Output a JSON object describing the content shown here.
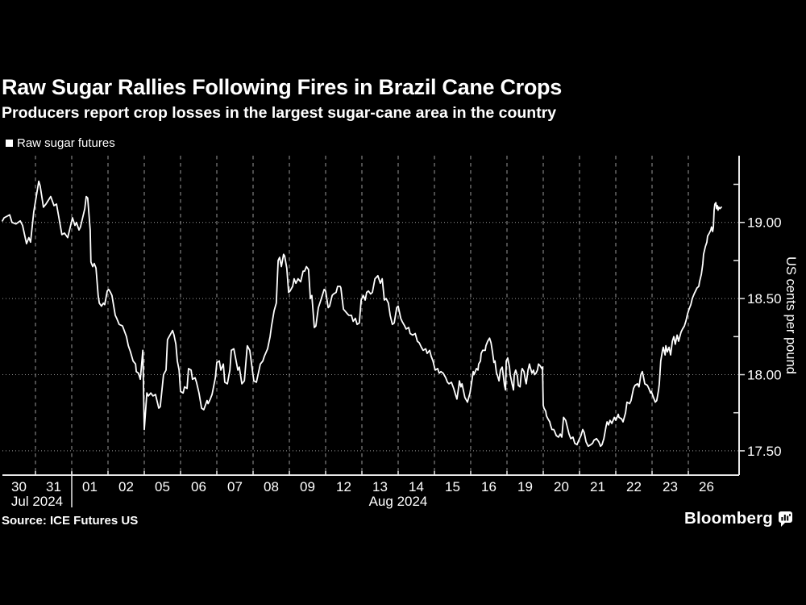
{
  "header": {
    "title": "Raw Sugar Rallies Following Fires in Brazil Cane Crops",
    "subtitle": "Producers report crop losses in the largest sugar-cane area in the country"
  },
  "legend": {
    "label": "Raw sugar futures",
    "marker_color": "#ffffff"
  },
  "footer": {
    "source": "Source: ICE Futures US",
    "brand": "Bloomberg",
    "brand_icon": "bar-chart-bubble-icon"
  },
  "colors": {
    "background": "#000000",
    "text": "#ffffff",
    "line": "#ffffff",
    "grid": "#9a9a9a",
    "axis": "#e8e8e8"
  },
  "chart_data": {
    "type": "line",
    "series_name": "Raw sugar futures",
    "ylabel": "US cents per pound",
    "xlabel": "",
    "ylim": [
      17.34,
      19.44
    ],
    "grid": "dashed vertical day boundaries, dotted horizontal value lines",
    "legend_position": "top-left",
    "y_ticks": [
      {
        "value": 19.0,
        "label": "19.00"
      },
      {
        "value": 18.5,
        "label": "18.50"
      },
      {
        "value": 18.0,
        "label": "18.00"
      },
      {
        "value": 17.5,
        "label": "17.50"
      }
    ],
    "y_minor_ticks": [
      19.25,
      18.75,
      18.25,
      17.75
    ],
    "x_categories": [
      "30",
      "31",
      "01",
      "02",
      "05",
      "06",
      "07",
      "08",
      "09",
      "12",
      "13",
      "14",
      "15",
      "16",
      "19",
      "20",
      "21",
      "22",
      "23",
      "26"
    ],
    "x_months": [
      {
        "label": "Jul 2024",
        "from_day": 0,
        "to_day": 2
      },
      {
        "label": "Aug 2024",
        "from_day": 2,
        "to_day": 20
      }
    ],
    "points_units": "[trading_day_index 0-20 across x_categories, price in US cents per pound]",
    "points": [
      [
        0.0,
        19.01
      ],
      [
        0.05,
        19.03
      ],
      [
        0.22,
        19.05
      ],
      [
        0.29,
        19.0
      ],
      [
        0.41,
        18.99
      ],
      [
        0.54,
        19.01
      ],
      [
        0.61,
        18.98
      ],
      [
        0.73,
        18.86
      ],
      [
        0.8,
        18.9
      ],
      [
        0.85,
        18.87
      ],
      [
        0.95,
        19.07
      ],
      [
        1.09,
        19.27
      ],
      [
        1.13,
        19.24
      ],
      [
        1.22,
        19.1
      ],
      [
        1.29,
        19.12
      ],
      [
        1.42,
        19.17
      ],
      [
        1.51,
        19.11
      ],
      [
        1.58,
        19.12
      ],
      [
        1.73,
        18.92
      ],
      [
        1.8,
        18.93
      ],
      [
        1.89,
        18.9
      ],
      [
        1.96,
        18.97
      ],
      [
        2.02,
        19.03
      ],
      [
        2.09,
        18.98
      ],
      [
        2.13,
        19.0
      ],
      [
        2.2,
        18.95
      ],
      [
        2.24,
        18.97
      ],
      [
        2.36,
        19.09
      ],
      [
        2.4,
        19.17
      ],
      [
        2.44,
        19.16
      ],
      [
        2.51,
        18.95
      ],
      [
        2.53,
        18.74
      ],
      [
        2.58,
        18.71
      ],
      [
        2.62,
        18.73
      ],
      [
        2.67,
        18.7
      ],
      [
        2.73,
        18.52
      ],
      [
        2.76,
        18.47
      ],
      [
        2.82,
        18.45
      ],
      [
        2.87,
        18.47
      ],
      [
        2.91,
        18.46
      ],
      [
        2.98,
        18.55
      ],
      [
        3.02,
        18.56
      ],
      [
        3.07,
        18.54
      ],
      [
        3.11,
        18.52
      ],
      [
        3.2,
        18.39
      ],
      [
        3.24,
        18.37
      ],
      [
        3.31,
        18.33
      ],
      [
        3.4,
        18.32
      ],
      [
        3.51,
        18.25
      ],
      [
        3.56,
        18.19
      ],
      [
        3.62,
        18.15
      ],
      [
        3.69,
        18.09
      ],
      [
        3.76,
        18.07
      ],
      [
        3.78,
        18.02
      ],
      [
        3.84,
        18.01
      ],
      [
        3.89,
        17.97
      ],
      [
        3.96,
        18.16
      ],
      [
        4.0,
        17.64
      ],
      [
        4.07,
        17.88
      ],
      [
        4.11,
        17.86
      ],
      [
        4.18,
        17.88
      ],
      [
        4.24,
        17.86
      ],
      [
        4.31,
        17.87
      ],
      [
        4.4,
        17.78
      ],
      [
        4.44,
        17.79
      ],
      [
        4.53,
        18.0
      ],
      [
        4.6,
        18.03
      ],
      [
        4.64,
        18.23
      ],
      [
        4.78,
        18.29
      ],
      [
        4.82,
        18.26
      ],
      [
        4.87,
        18.2
      ],
      [
        4.91,
        18.09
      ],
      [
        4.96,
        18.03
      ],
      [
        5.0,
        17.89
      ],
      [
        5.07,
        17.88
      ],
      [
        5.11,
        17.92
      ],
      [
        5.18,
        17.91
      ],
      [
        5.22,
        18.04
      ],
      [
        5.29,
        18.03
      ],
      [
        5.33,
        17.97
      ],
      [
        5.4,
        17.98
      ],
      [
        5.44,
        17.95
      ],
      [
        5.51,
        17.88
      ],
      [
        5.58,
        17.78
      ],
      [
        5.64,
        17.77
      ],
      [
        5.73,
        17.83
      ],
      [
        5.76,
        17.81
      ],
      [
        5.82,
        17.84
      ],
      [
        5.87,
        17.87
      ],
      [
        5.96,
        17.98
      ],
      [
        6.0,
        18.08
      ],
      [
        6.07,
        18.09
      ],
      [
        6.11,
        18.03
      ],
      [
        6.18,
        18.07
      ],
      [
        6.22,
        17.95
      ],
      [
        6.29,
        17.94
      ],
      [
        6.36,
        18.03
      ],
      [
        6.4,
        18.16
      ],
      [
        6.47,
        18.17
      ],
      [
        6.51,
        18.12
      ],
      [
        6.58,
        18.03
      ],
      [
        6.62,
        18.05
      ],
      [
        6.69,
        17.94
      ],
      [
        6.76,
        17.96
      ],
      [
        6.84,
        18.19
      ],
      [
        6.91,
        18.16
      ],
      [
        7.02,
        17.96
      ],
      [
        7.09,
        17.95
      ],
      [
        7.2,
        18.07
      ],
      [
        7.27,
        18.09
      ],
      [
        7.31,
        18.12
      ],
      [
        7.4,
        18.17
      ],
      [
        7.47,
        18.25
      ],
      [
        7.51,
        18.32
      ],
      [
        7.58,
        18.42
      ],
      [
        7.64,
        18.47
      ],
      [
        7.69,
        18.75
      ],
      [
        7.73,
        18.77
      ],
      [
        7.78,
        18.71
      ],
      [
        7.84,
        18.79
      ],
      [
        7.87,
        18.78
      ],
      [
        7.93,
        18.7
      ],
      [
        7.98,
        18.54
      ],
      [
        8.02,
        18.55
      ],
      [
        8.09,
        18.58
      ],
      [
        8.13,
        18.63
      ],
      [
        8.18,
        18.6
      ],
      [
        8.24,
        18.63
      ],
      [
        8.31,
        18.61
      ],
      [
        8.38,
        18.68
      ],
      [
        8.42,
        18.68
      ],
      [
        8.47,
        18.71
      ],
      [
        8.53,
        18.69
      ],
      [
        8.58,
        18.5
      ],
      [
        8.62,
        18.52
      ],
      [
        8.69,
        18.31
      ],
      [
        8.73,
        18.32
      ],
      [
        8.8,
        18.44
      ],
      [
        8.87,
        18.49
      ],
      [
        8.96,
        18.56
      ],
      [
        9.0,
        18.55
      ],
      [
        9.07,
        18.44
      ],
      [
        9.11,
        18.45
      ],
      [
        9.18,
        18.52
      ],
      [
        9.22,
        18.53
      ],
      [
        9.29,
        18.54
      ],
      [
        9.33,
        18.58
      ],
      [
        9.4,
        18.58
      ],
      [
        9.42,
        18.57
      ],
      [
        9.49,
        18.43
      ],
      [
        9.53,
        18.42
      ],
      [
        9.6,
        18.4
      ],
      [
        9.64,
        18.39
      ],
      [
        9.71,
        18.39
      ],
      [
        9.76,
        18.35
      ],
      [
        9.82,
        18.37
      ],
      [
        9.87,
        18.33
      ],
      [
        9.93,
        18.34
      ],
      [
        9.98,
        18.49
      ],
      [
        10.04,
        18.52
      ],
      [
        10.09,
        18.49
      ],
      [
        10.13,
        18.54
      ],
      [
        10.18,
        18.55
      ],
      [
        10.24,
        18.53
      ],
      [
        10.29,
        18.54
      ],
      [
        10.36,
        18.63
      ],
      [
        10.4,
        18.64
      ],
      [
        10.44,
        18.65
      ],
      [
        10.51,
        18.6
      ],
      [
        10.56,
        18.63
      ],
      [
        10.62,
        18.49
      ],
      [
        10.67,
        18.5
      ],
      [
        10.73,
        18.47
      ],
      [
        10.78,
        18.39
      ],
      [
        10.84,
        18.33
      ],
      [
        10.89,
        18.34
      ],
      [
        10.96,
        18.44
      ],
      [
        11.0,
        18.45
      ],
      [
        11.07,
        18.37
      ],
      [
        11.11,
        18.35
      ],
      [
        11.18,
        18.32
      ],
      [
        11.22,
        18.3
      ],
      [
        11.29,
        18.31
      ],
      [
        11.33,
        18.27
      ],
      [
        11.4,
        18.26
      ],
      [
        11.47,
        18.27
      ],
      [
        11.53,
        18.22
      ],
      [
        11.58,
        18.21
      ],
      [
        11.64,
        18.18
      ],
      [
        11.69,
        18.16
      ],
      [
        11.76,
        18.17
      ],
      [
        11.8,
        18.14
      ],
      [
        11.87,
        18.16
      ],
      [
        11.91,
        18.12
      ],
      [
        11.96,
        18.09
      ],
      [
        12.02,
        18.03
      ],
      [
        12.09,
        18.04
      ],
      [
        12.13,
        18.01
      ],
      [
        12.18,
        18.02
      ],
      [
        12.24,
        18.01
      ],
      [
        12.31,
        17.98
      ],
      [
        12.36,
        17.95
      ],
      [
        12.4,
        17.94
      ],
      [
        12.47,
        17.95
      ],
      [
        12.53,
        17.91
      ],
      [
        12.58,
        17.87
      ],
      [
        12.62,
        17.84
      ],
      [
        12.67,
        17.92
      ],
      [
        12.69,
        17.96
      ],
      [
        12.73,
        17.92
      ],
      [
        12.76,
        17.94
      ],
      [
        12.84,
        17.85
      ],
      [
        12.91,
        17.82
      ],
      [
        12.98,
        17.88
      ],
      [
        13.02,
        17.94
      ],
      [
        13.07,
        18.02
      ],
      [
        13.09,
        18.0
      ],
      [
        13.16,
        18.04
      ],
      [
        13.2,
        18.03
      ],
      [
        13.22,
        18.07
      ],
      [
        13.27,
        18.09
      ],
      [
        13.29,
        18.14
      ],
      [
        13.33,
        18.16
      ],
      [
        13.4,
        18.16
      ],
      [
        13.42,
        18.19
      ],
      [
        13.47,
        18.22
      ],
      [
        13.52,
        18.24
      ],
      [
        13.56,
        18.21
      ],
      [
        13.6,
        18.15
      ],
      [
        13.64,
        18.08
      ],
      [
        13.67,
        18.09
      ],
      [
        13.71,
        18.01
      ],
      [
        13.73,
        18.0
      ],
      [
        13.78,
        17.96
      ],
      [
        13.82,
        18.03
      ],
      [
        13.87,
        18.05
      ],
      [
        13.89,
        18.01
      ],
      [
        13.93,
        17.93
      ],
      [
        13.96,
        17.9
      ],
      [
        13.98,
        18.09
      ],
      [
        14.02,
        18.11
      ],
      [
        14.07,
        18.05
      ],
      [
        14.09,
        18.0
      ],
      [
        14.14,
        17.94
      ],
      [
        14.18,
        17.9
      ],
      [
        14.2,
        18.0
      ],
      [
        14.24,
        18.03
      ],
      [
        14.29,
        17.99
      ],
      [
        14.31,
        17.93
      ],
      [
        14.36,
        17.92
      ],
      [
        14.4,
        18.02
      ],
      [
        14.42,
        18.04
      ],
      [
        14.47,
        18.02
      ],
      [
        14.51,
        17.96
      ],
      [
        14.53,
        17.94
      ],
      [
        14.58,
        18.03
      ],
      [
        14.62,
        18.07
      ],
      [
        14.64,
        18.05
      ],
      [
        14.69,
        18.01
      ],
      [
        14.73,
        18.03
      ],
      [
        14.76,
        18.0
      ],
      [
        14.8,
        18.01
      ],
      [
        14.84,
        18.03
      ],
      [
        14.87,
        18.07
      ],
      [
        14.91,
        18.06
      ],
      [
        14.96,
        18.04
      ],
      [
        14.98,
        18.05
      ],
      [
        15.0,
        17.8
      ],
      [
        15.02,
        17.78
      ],
      [
        15.07,
        17.76
      ],
      [
        15.09,
        17.73
      ],
      [
        15.13,
        17.71
      ],
      [
        15.18,
        17.69
      ],
      [
        15.2,
        17.67
      ],
      [
        15.24,
        17.64
      ],
      [
        15.29,
        17.64
      ],
      [
        15.31,
        17.63
      ],
      [
        15.36,
        17.6
      ],
      [
        15.42,
        17.59
      ],
      [
        15.47,
        17.61
      ],
      [
        15.51,
        17.59
      ],
      [
        15.56,
        17.72
      ],
      [
        15.62,
        17.7
      ],
      [
        15.64,
        17.68
      ],
      [
        15.71,
        17.61
      ],
      [
        15.76,
        17.58
      ],
      [
        15.82,
        17.59
      ],
      [
        15.87,
        17.55
      ],
      [
        15.93,
        17.54
      ],
      [
        15.98,
        17.57
      ],
      [
        16.04,
        17.6
      ],
      [
        16.09,
        17.64
      ],
      [
        16.13,
        17.62
      ],
      [
        16.18,
        17.56
      ],
      [
        16.24,
        17.53
      ],
      [
        16.31,
        17.54
      ],
      [
        16.36,
        17.55
      ],
      [
        16.4,
        17.57
      ],
      [
        16.47,
        17.58
      ],
      [
        16.53,
        17.56
      ],
      [
        16.58,
        17.53
      ],
      [
        16.62,
        17.54
      ],
      [
        16.67,
        17.58
      ],
      [
        16.73,
        17.66
      ],
      [
        16.76,
        17.69
      ],
      [
        16.8,
        17.67
      ],
      [
        16.84,
        17.7
      ],
      [
        16.89,
        17.68
      ],
      [
        16.96,
        17.72
      ],
      [
        17.0,
        17.7
      ],
      [
        17.07,
        17.74
      ],
      [
        17.09,
        17.72
      ],
      [
        17.16,
        17.71
      ],
      [
        17.2,
        17.69
      ],
      [
        17.27,
        17.75
      ],
      [
        17.31,
        17.82
      ],
      [
        17.38,
        17.81
      ],
      [
        17.42,
        17.83
      ],
      [
        17.49,
        17.91
      ],
      [
        17.53,
        17.93
      ],
      [
        17.6,
        17.94
      ],
      [
        17.64,
        17.92
      ],
      [
        17.69,
        18.0
      ],
      [
        17.73,
        18.02
      ],
      [
        17.76,
        17.99
      ],
      [
        17.8,
        17.94
      ],
      [
        17.87,
        17.93
      ],
      [
        17.91,
        17.91
      ],
      [
        17.96,
        17.88
      ],
      [
        17.98,
        17.89
      ],
      [
        18.04,
        17.85
      ],
      [
        18.09,
        17.82
      ],
      [
        18.13,
        17.83
      ],
      [
        18.18,
        17.9
      ],
      [
        18.2,
        17.94
      ],
      [
        18.24,
        18.09
      ],
      [
        18.29,
        18.16
      ],
      [
        18.31,
        18.18
      ],
      [
        18.36,
        18.13
      ],
      [
        18.38,
        18.19
      ],
      [
        18.42,
        18.15
      ],
      [
        18.47,
        18.18
      ],
      [
        18.51,
        18.13
      ],
      [
        18.56,
        18.22
      ],
      [
        18.6,
        18.25
      ],
      [
        18.64,
        18.2
      ],
      [
        18.69,
        18.26
      ],
      [
        18.73,
        18.22
      ],
      [
        18.8,
        18.28
      ],
      [
        18.84,
        18.3
      ],
      [
        18.89,
        18.32
      ],
      [
        18.93,
        18.35
      ],
      [
        18.98,
        18.4
      ],
      [
        19.02,
        18.43
      ],
      [
        19.07,
        18.46
      ],
      [
        19.11,
        18.5
      ],
      [
        19.16,
        18.53
      ],
      [
        19.2,
        18.55
      ],
      [
        19.24,
        18.57
      ],
      [
        19.29,
        18.58
      ],
      [
        19.31,
        18.61
      ],
      [
        19.36,
        18.66
      ],
      [
        19.4,
        18.73
      ],
      [
        19.42,
        18.79
      ],
      [
        19.47,
        18.84
      ],
      [
        19.51,
        18.87
      ],
      [
        19.53,
        18.91
      ],
      [
        19.58,
        18.93
      ],
      [
        19.62,
        18.95
      ],
      [
        19.64,
        18.97
      ],
      [
        19.67,
        18.94
      ],
      [
        19.69,
        18.97
      ],
      [
        19.71,
        19.08
      ],
      [
        19.73,
        19.12
      ],
      [
        19.76,
        19.13
      ],
      [
        19.78,
        19.09
      ],
      [
        19.8,
        19.11
      ],
      [
        19.82,
        19.08
      ],
      [
        19.84,
        19.1
      ],
      [
        19.87,
        19.09
      ],
      [
        19.91,
        19.1
      ]
    ]
  }
}
